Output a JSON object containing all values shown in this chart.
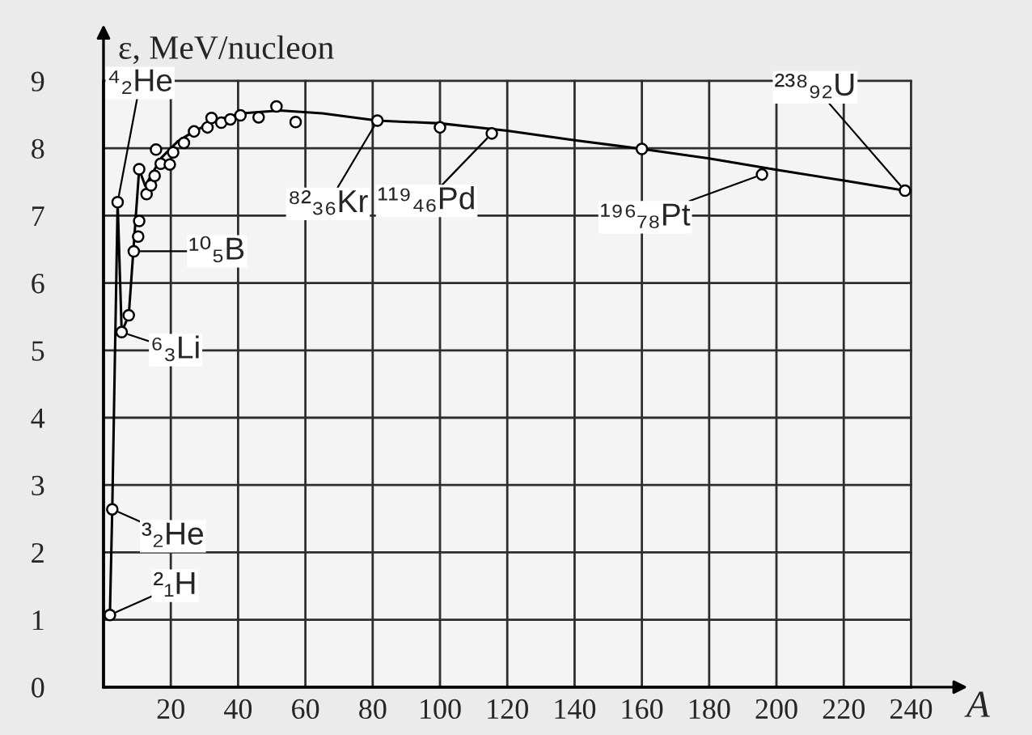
{
  "chart_data": {
    "type": "line",
    "xlabel": "A",
    "ylabel": "ε, MeV/nucleon",
    "xlim": [
      0,
      240
    ],
    "ylim": [
      0,
      9
    ],
    "xticks": [
      {
        "value": 0,
        "label": null
      },
      20,
      40,
      60,
      80,
      100,
      120,
      140,
      160,
      180,
      200,
      220,
      240
    ],
    "yticks": [
      0,
      1,
      2,
      3,
      4,
      5,
      6,
      7,
      8,
      9
    ],
    "grid": true,
    "series": [
      {
        "color": "#000000",
        "x": [
          1.9,
          2.6,
          4.2,
          5.4,
          7.5,
          10.6,
          12.4,
          13.3,
          17.2,
          22.0,
          26.8,
          33.2,
          41.2,
          52.4,
          65,
          81.4,
          100,
          120,
          140,
          160,
          180,
          200,
          220,
          238.2
        ],
        "values": [
          1.07,
          2.64,
          7.2,
          5.27,
          5.52,
          7.69,
          7.44,
          7.52,
          7.86,
          8.1,
          8.25,
          8.41,
          8.52,
          8.56,
          8.52,
          8.41,
          8.37,
          8.26,
          8.12,
          7.99,
          7.85,
          7.68,
          7.52,
          7.37
        ]
      },
      {
        "type": "scatter",
        "marker": "circle",
        "color": "#000000",
        "x": [
          1.9,
          2.6,
          4.2,
          5.4,
          7.5,
          9.0,
          10.3,
          10.6,
          10.6,
          12.8,
          14.1,
          15.2,
          15.6,
          17.0,
          19.7,
          20.7,
          23.9,
          26.9,
          30.9,
          32.1,
          35.0,
          37.7,
          40.7,
          46.1,
          51.4,
          57.1,
          81.4,
          100,
          115.4,
          160,
          195.7,
          238.2
        ],
        "values": [
          1.07,
          2.64,
          7.2,
          5.27,
          5.52,
          6.47,
          6.69,
          6.92,
          7.69,
          7.32,
          7.45,
          7.59,
          7.98,
          7.77,
          7.76,
          7.94,
          8.08,
          8.25,
          8.31,
          8.45,
          8.38,
          8.43,
          8.49,
          8.46,
          8.62,
          8.39,
          8.41,
          8.31,
          8.22,
          7.99,
          7.61,
          7.37
        ]
      }
    ],
    "annotations": [
      {
        "text": "⁴₂He",
        "x": 4.2,
        "y": 7.2
      },
      {
        "text": "⁶₃Li",
        "x": 5.4,
        "y": 5.27
      },
      {
        "text": "¹⁰₅B",
        "x": 9.0,
        "y": 6.47
      },
      {
        "text": "³₂He",
        "x": 2.6,
        "y": 2.64
      },
      {
        "text": "²₁H",
        "x": 1.9,
        "y": 1.07
      },
      {
        "text": "⁸²₃₆Kr",
        "x": 81.4,
        "y": 8.41
      },
      {
        "text": "¹¹⁹₄₆Pd",
        "x": 115.4,
        "y": 8.22
      },
      {
        "text": "¹⁹⁶₇₈Pt",
        "x": 195.7,
        "y": 7.61
      },
      {
        "text": "²³⁸₉₂U",
        "x": 238.2,
        "y": 7.37
      }
    ]
  }
}
